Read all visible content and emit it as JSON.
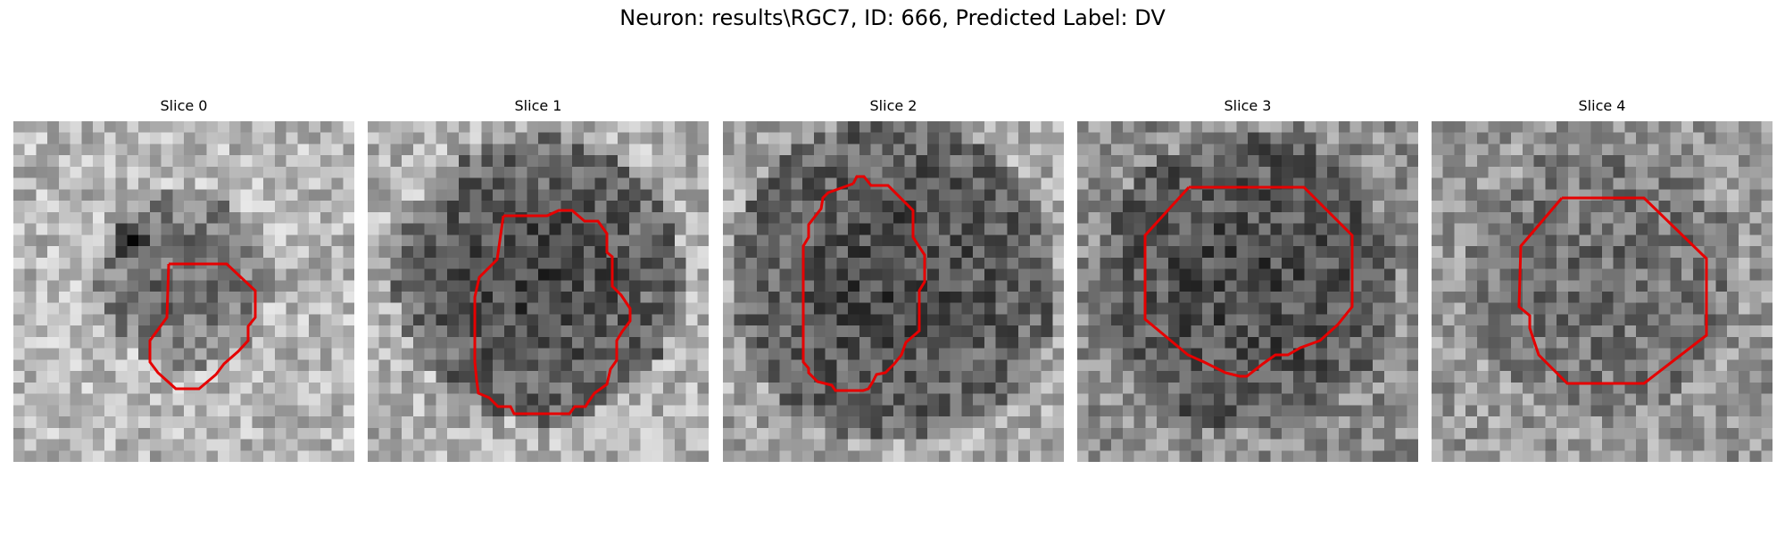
{
  "figure_title": "Neuron: results\\RGC7, ID: 666, Predicted Label: DV",
  "contour_color": "#e60000",
  "slices": [
    {
      "title": "Slice 0",
      "pattern": {
        "bg": 0.72,
        "seed": 11,
        "darkness": 0.32,
        "blob_r": 0.26,
        "spot": true
      }
    },
    {
      "title": "Slice 1",
      "pattern": {
        "bg": 0.7,
        "seed": 23,
        "darkness": 0.45,
        "blob_r": 0.42,
        "spot": false
      }
    },
    {
      "title": "Slice 2",
      "pattern": {
        "bg": 0.66,
        "seed": 37,
        "darkness": 0.4,
        "blob_r": 0.48,
        "spot": false
      }
    },
    {
      "title": "Slice 3",
      "pattern": {
        "bg": 0.55,
        "seed": 41,
        "darkness": 0.28,
        "blob_r": 0.44,
        "spot": false
      }
    },
    {
      "title": "Slice 4",
      "pattern": {
        "bg": 0.6,
        "seed": 53,
        "darkness": 0.18,
        "blob_r": 0.4,
        "spot": false
      }
    }
  ]
}
